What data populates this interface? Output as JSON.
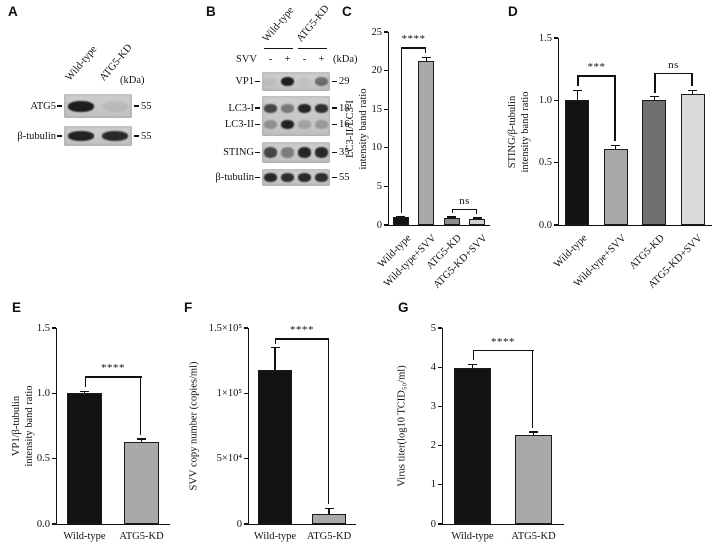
{
  "figure": {
    "panels": {
      "A": "A",
      "B": "B",
      "C": "C",
      "D": "D",
      "E": "E",
      "F": "F",
      "G": "G"
    }
  },
  "blots": [
    {
      "panel": "A",
      "lane_labels": [
        "Wild-type",
        "ATG5-KD"
      ],
      "kda_label": "(kDa)",
      "rows": [
        {
          "label": "ATG5",
          "marker": "55",
          "bands": [
            0.95,
            0.07
          ]
        },
        {
          "label": "β-tubulin",
          "marker": "55",
          "bands": [
            0.92,
            0.88
          ]
        }
      ]
    },
    {
      "panel": "B",
      "group_labels": [
        "Wild-type",
        "ATG5-KD"
      ],
      "treatment_label": "SVV",
      "treatment_signs": [
        "-",
        "+",
        "-",
        "+"
      ],
      "kda_label": "(kDa)",
      "rows": [
        {
          "label": "VP1",
          "marker": "29",
          "bands": [
            0.05,
            0.95,
            0.03,
            0.5
          ]
        },
        {
          "label": "LC3-I",
          "marker": "18",
          "bands": [
            0.72,
            0.45,
            0.9,
            0.85
          ],
          "label2": "LC3-II",
          "marker2": "16",
          "bands2": [
            0.3,
            0.92,
            0.2,
            0.25
          ]
        },
        {
          "label": "STING",
          "marker": "35",
          "bands": [
            0.72,
            0.42,
            0.9,
            0.88
          ]
        },
        {
          "label": "β-tubulin",
          "marker": "55",
          "bands": [
            0.88,
            0.86,
            0.88,
            0.86
          ]
        }
      ]
    }
  ],
  "chart_data": [
    {
      "panel": "C",
      "type": "bar",
      "categories": [
        "Wild-type",
        "Wild-type+SVV",
        "ATG5-KD",
        "ATG5-KD+SVV"
      ],
      "values": [
        1.0,
        21.2,
        0.9,
        0.8
      ],
      "errors": [
        0.08,
        0.5,
        0.12,
        0.1
      ],
      "colors": [
        "#121212",
        "#a9a9a9",
        "#8c8c8c",
        "#cfcfcf"
      ],
      "ylabel": [
        "LC3-II/LC3-I",
        "intensity band ratio"
      ],
      "ylim": [
        0,
        25
      ],
      "yticks": [
        0,
        5,
        10,
        15,
        20,
        25
      ],
      "ytick_labels": [
        "0",
        "5",
        "10",
        "15",
        "20",
        "25"
      ],
      "x_rotated": true,
      "grid": false,
      "annotations": [
        {
          "between": [
            0,
            1
          ],
          "label": "****",
          "y": 23.0
        },
        {
          "between": [
            2,
            3
          ],
          "label": "ns",
          "y": 2.1
        }
      ]
    },
    {
      "panel": "D",
      "type": "bar",
      "categories": [
        "Wild-type",
        "Wild-type+SVV",
        "ATG5-KD",
        "ATG5-KD+SVV"
      ],
      "values": [
        1.0,
        0.61,
        1.0,
        1.05
      ],
      "errors": [
        0.08,
        0.03,
        0.03,
        0.03
      ],
      "colors": [
        "#121212",
        "#a9a9a9",
        "#6f6f6f",
        "#dadada"
      ],
      "ylabel": [
        "STING/β-tubulin",
        "intensity band ratio"
      ],
      "ylim": [
        0,
        1.5
      ],
      "yticks": [
        0,
        0.5,
        1.0,
        1.5
      ],
      "ytick_labels": [
        "0.0",
        "0.5",
        "1.0",
        "1.5"
      ],
      "x_rotated": true,
      "grid": false,
      "annotations": [
        {
          "between": [
            0,
            1
          ],
          "label": "***",
          "y": 1.2
        },
        {
          "between": [
            2,
            3
          ],
          "label": "ns",
          "y": 1.22
        }
      ]
    },
    {
      "panel": "E",
      "type": "bar",
      "categories": [
        "Wild-type",
        "ATG5-KD"
      ],
      "values": [
        1.0,
        0.63
      ],
      "errors": [
        0.015,
        0.02
      ],
      "colors": [
        "#121212",
        "#a9a9a9"
      ],
      "ylabel": [
        "VP1/β-tubulin",
        "intensity band ratio"
      ],
      "ylim": [
        0,
        1.5
      ],
      "yticks": [
        0,
        0.5,
        1.0,
        1.5
      ],
      "ytick_labels": [
        "0.0",
        "0.5",
        "1.0",
        "1.5"
      ],
      "x_rotated": false,
      "grid": false,
      "annotations": [
        {
          "between": [
            0,
            1
          ],
          "label": "****",
          "y": 1.13
        }
      ]
    },
    {
      "panel": "F",
      "type": "bar",
      "categories": [
        "Wild-type",
        "ATG5-KD"
      ],
      "values": [
        118000,
        8000
      ],
      "errors": [
        17000,
        4000
      ],
      "colors": [
        "#121212",
        "#a9a9a9"
      ],
      "ylabel": [
        "SVV copy number (copies/ml)"
      ],
      "ylim": [
        0,
        150000
      ],
      "yticks": [
        0,
        50000,
        100000,
        150000
      ],
      "ytick_labels": [
        "0",
        "5×10⁴",
        "1×10⁵",
        "1.5×10⁵"
      ],
      "x_rotated": false,
      "grid": false,
      "annotations": [
        {
          "between": [
            0,
            1
          ],
          "label": "****",
          "y": 142000
        }
      ]
    },
    {
      "panel": "G",
      "type": "bar",
      "categories": [
        "Wild-type",
        "ATG5-KD"
      ],
      "values": [
        3.97,
        2.27
      ],
      "errors": [
        0.1,
        0.08
      ],
      "colors": [
        "#121212",
        "#a9a9a9"
      ],
      "ylabel": [
        "Virus titer(log10 TCID₅₀/ml)"
      ],
      "ylim": [
        0,
        5
      ],
      "yticks": [
        0,
        1,
        2,
        3,
        4,
        5
      ],
      "ytick_labels": [
        "0",
        "1",
        "2",
        "3",
        "4",
        "5"
      ],
      "x_rotated": false,
      "grid": false,
      "annotations": [
        {
          "between": [
            0,
            1
          ],
          "label": "****",
          "y": 4.45
        }
      ]
    }
  ]
}
